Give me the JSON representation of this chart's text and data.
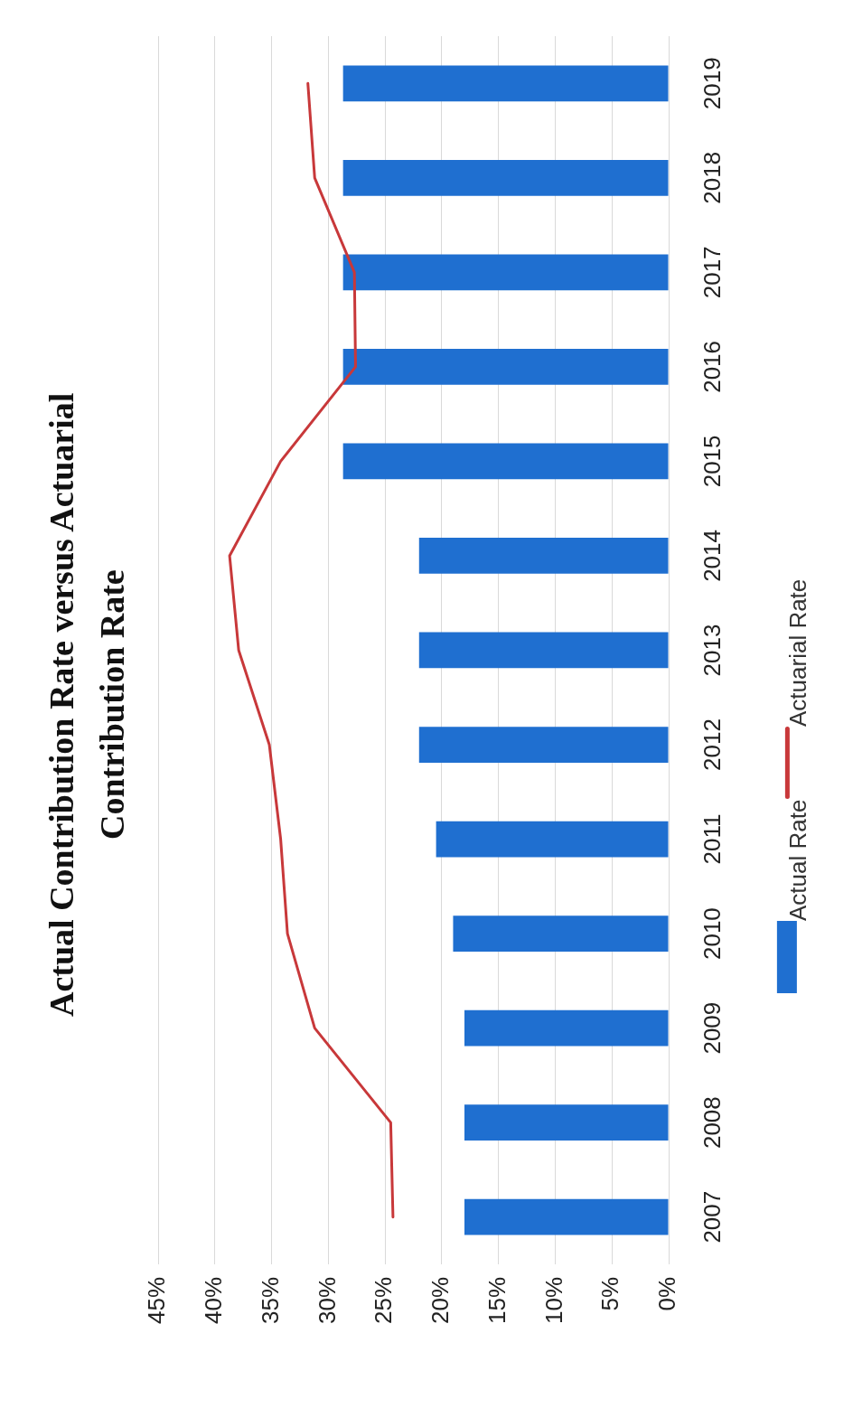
{
  "chart_data": {
    "type": "bar",
    "orientation": "horizontal",
    "title": "Actual Contribution Rate versus Actuarial Contribution Rate",
    "categories": [
      "2019",
      "2018",
      "2017",
      "2016",
      "2015",
      "2014",
      "2013",
      "2012",
      "2011",
      "2010",
      "2009",
      "2008",
      "2007"
    ],
    "series": [
      {
        "name": "Actual Rate",
        "color": "#1f6fd0",
        "values": [
          28.7,
          28.7,
          28.7,
          28.7,
          28.7,
          22,
          22,
          22,
          20.5,
          19,
          18,
          18,
          18
        ]
      },
      {
        "name": "Actuarial Rate",
        "type": "line",
        "color": "#c8383a",
        "values": [
          31.8,
          31.2,
          27.7,
          27.6,
          34.2,
          38.7,
          37.9,
          35.2,
          34.2,
          33.6,
          31.2,
          24.5,
          24.3
        ]
      }
    ],
    "xlim": [
      45,
      0
    ],
    "xticks": [
      {
        "value": 0,
        "label": "0%"
      },
      {
        "value": 5,
        "label": "5%"
      },
      {
        "value": 10,
        "label": "10%"
      },
      {
        "value": 15,
        "label": "15%"
      },
      {
        "value": 20,
        "label": "20%"
      },
      {
        "value": 25,
        "label": "25%"
      },
      {
        "value": 30,
        "label": "30%"
      },
      {
        "value": 35,
        "label": "35%"
      },
      {
        "value": 40,
        "label": "40%"
      },
      {
        "value": 45,
        "label": "45%"
      }
    ],
    "grid": "x",
    "legend": "right",
    "marker": "none"
  }
}
